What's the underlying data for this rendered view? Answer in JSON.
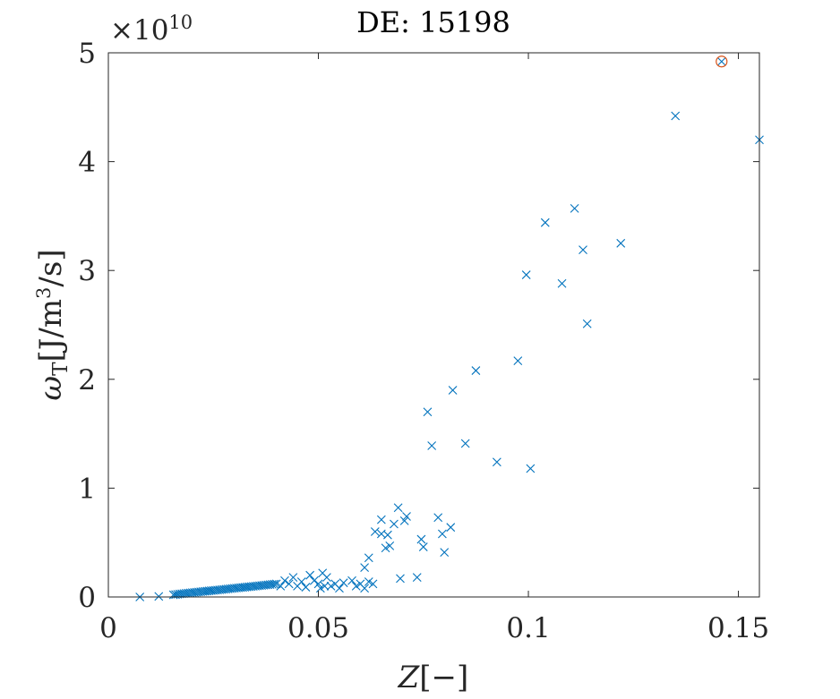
{
  "chart_data": {
    "type": "scatter",
    "title": "DE: 15198",
    "xlabel_var": "Z",
    "xlabel_unit": "[−]",
    "ylabel_var": "ω",
    "ylabel_sub": "T",
    "ylabel_unit_pre": "[J/m",
    "ylabel_unit_sup": "3",
    "ylabel_unit_post": "/s]",
    "exponent_base": "×10",
    "exponent_power": "10",
    "xlim": [
      0,
      0.155
    ],
    "ylim": [
      0,
      5
    ],
    "xticks": [
      0,
      0.05,
      0.1,
      0.15
    ],
    "xtick_labels": [
      "0",
      "0.05",
      "0.1",
      "0.15"
    ],
    "yticks": [
      0,
      1,
      2,
      3,
      4,
      5
    ],
    "ytick_labels": [
      "0",
      "1",
      "2",
      "3",
      "4",
      "5"
    ],
    "grid": false,
    "colors": {
      "series": "#0072BD",
      "highlight": "#D95319"
    },
    "series": [
      {
        "marker": "x",
        "points": [
          [
            0.0075,
            0.0
          ],
          [
            0.012,
            0.005
          ],
          [
            0.0155,
            0.02
          ],
          [
            0.016,
            0.022
          ],
          [
            0.0165,
            0.025
          ],
          [
            0.017,
            0.028
          ],
          [
            0.0175,
            0.03
          ],
          [
            0.018,
            0.032
          ],
          [
            0.0185,
            0.034
          ],
          [
            0.019,
            0.036
          ],
          [
            0.0195,
            0.038
          ],
          [
            0.02,
            0.04
          ],
          [
            0.0205,
            0.042
          ],
          [
            0.021,
            0.044
          ],
          [
            0.0215,
            0.046
          ],
          [
            0.022,
            0.048
          ],
          [
            0.0225,
            0.05
          ],
          [
            0.023,
            0.052
          ],
          [
            0.0235,
            0.054
          ],
          [
            0.024,
            0.056
          ],
          [
            0.0245,
            0.058
          ],
          [
            0.025,
            0.06
          ],
          [
            0.0255,
            0.062
          ],
          [
            0.026,
            0.064
          ],
          [
            0.0265,
            0.066
          ],
          [
            0.027,
            0.068
          ],
          [
            0.0275,
            0.07
          ],
          [
            0.028,
            0.072
          ],
          [
            0.0285,
            0.074
          ],
          [
            0.029,
            0.076
          ],
          [
            0.0295,
            0.078
          ],
          [
            0.03,
            0.08
          ],
          [
            0.0305,
            0.082
          ],
          [
            0.031,
            0.084
          ],
          [
            0.0315,
            0.086
          ],
          [
            0.032,
            0.088
          ],
          [
            0.0325,
            0.09
          ],
          [
            0.033,
            0.092
          ],
          [
            0.0335,
            0.094
          ],
          [
            0.034,
            0.096
          ],
          [
            0.0345,
            0.098
          ],
          [
            0.035,
            0.1
          ],
          [
            0.0355,
            0.102
          ],
          [
            0.036,
            0.104
          ],
          [
            0.0365,
            0.106
          ],
          [
            0.037,
            0.108
          ],
          [
            0.0375,
            0.11
          ],
          [
            0.038,
            0.112
          ],
          [
            0.0385,
            0.114
          ],
          [
            0.039,
            0.116
          ],
          [
            0.0395,
            0.118
          ],
          [
            0.04,
            0.12
          ],
          [
            0.041,
            0.1
          ],
          [
            0.042,
            0.15
          ],
          [
            0.043,
            0.12
          ],
          [
            0.044,
            0.18
          ],
          [
            0.045,
            0.1
          ],
          [
            0.046,
            0.14
          ],
          [
            0.047,
            0.09
          ],
          [
            0.048,
            0.2
          ],
          [
            0.049,
            0.15
          ],
          [
            0.05,
            0.12
          ],
          [
            0.0505,
            0.08
          ],
          [
            0.051,
            0.22
          ],
          [
            0.0515,
            0.1
          ],
          [
            0.052,
            0.18
          ],
          [
            0.053,
            0.1
          ],
          [
            0.054,
            0.12
          ],
          [
            0.055,
            0.08
          ],
          [
            0.056,
            0.13
          ],
          [
            0.058,
            0.15
          ],
          [
            0.059,
            0.1
          ],
          [
            0.06,
            0.12
          ],
          [
            0.061,
            0.08
          ],
          [
            0.062,
            0.14
          ],
          [
            0.063,
            0.12
          ],
          [
            0.061,
            0.27
          ],
          [
            0.062,
            0.36
          ],
          [
            0.0635,
            0.6
          ],
          [
            0.065,
            0.58
          ],
          [
            0.065,
            0.71
          ],
          [
            0.066,
            0.45
          ],
          [
            0.0665,
            0.57
          ],
          [
            0.067,
            0.47
          ],
          [
            0.068,
            0.67
          ],
          [
            0.069,
            0.82
          ],
          [
            0.0695,
            0.17
          ],
          [
            0.0705,
            0.7
          ],
          [
            0.071,
            0.74
          ],
          [
            0.0735,
            0.18
          ],
          [
            0.0745,
            0.53
          ],
          [
            0.075,
            0.46
          ],
          [
            0.076,
            1.7
          ],
          [
            0.077,
            1.39
          ],
          [
            0.0785,
            0.73
          ],
          [
            0.0795,
            0.58
          ],
          [
            0.08,
            0.41
          ],
          [
            0.0815,
            0.64
          ],
          [
            0.082,
            1.9
          ],
          [
            0.085,
            1.41
          ],
          [
            0.0875,
            2.08
          ],
          [
            0.0925,
            1.24
          ],
          [
            0.0975,
            2.17
          ],
          [
            0.0995,
            2.96
          ],
          [
            0.1005,
            1.18
          ],
          [
            0.104,
            3.44
          ],
          [
            0.108,
            2.88
          ],
          [
            0.111,
            3.57
          ],
          [
            0.113,
            3.19
          ],
          [
            0.114,
            2.51
          ],
          [
            0.122,
            3.25
          ],
          [
            0.135,
            4.42
          ],
          [
            0.146,
            4.92
          ],
          [
            0.155,
            4.2
          ]
        ]
      },
      {
        "marker": "o",
        "points": [
          [
            0.146,
            4.92
          ]
        ]
      }
    ]
  }
}
